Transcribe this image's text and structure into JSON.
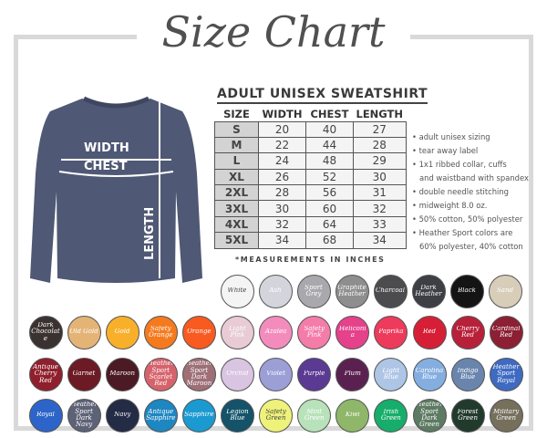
{
  "title": "Size Chart",
  "product": "ADULT UNISEX SWEATSHIRT",
  "shirt_labels": {
    "width": "WIDTH",
    "chest": "CHEST",
    "length": "LENGTH"
  },
  "table": {
    "headers": [
      "SIZE",
      "WIDTH",
      "CHEST",
      "LENGTH"
    ],
    "rows": [
      [
        "S",
        "20",
        "40",
        "27"
      ],
      [
        "M",
        "22",
        "44",
        "28"
      ],
      [
        "L",
        "24",
        "48",
        "29"
      ],
      [
        "XL",
        "26",
        "52",
        "30"
      ],
      [
        "2XL",
        "28",
        "56",
        "31"
      ],
      [
        "3XL",
        "30",
        "60",
        "32"
      ],
      [
        "4XL",
        "32",
        "64",
        "33"
      ],
      [
        "5XL",
        "34",
        "68",
        "34"
      ]
    ]
  },
  "note": "*MEASUREMENTS IN INCHES",
  "features": [
    "• adult unisex sizing",
    "• tear away label",
    "• 1x1 ribbed collar, cuffs",
    "and waistband with spandex",
    "• double needle stitching",
    "• midweight 8.0 oz.",
    "• 50% cotton, 50% polyester",
    "• Heather Sport colors are",
    "60% polyester, 40% cotton"
  ],
  "colors": [
    [
      [
        "White",
        "#f4f4f4",
        1
      ],
      [
        "Ash",
        "#d4d5dc",
        0
      ],
      [
        "Sport Grey",
        "#a9a9ad",
        0
      ],
      [
        "Graphite Heather",
        "#8e8e8e",
        0
      ],
      [
        "Charcoal",
        "#4c4c4e",
        0
      ],
      [
        "Dark Heather",
        "#3e3f44",
        0
      ],
      [
        "Black",
        "#141414",
        0
      ],
      [
        "Sand",
        "#d8cdb9",
        0
      ]
    ],
    [
      [
        "Dark Chocolate",
        "#3a3230",
        0
      ],
      [
        "Old Gold",
        "#e4b477",
        0
      ],
      [
        "Gold",
        "#f8b02a",
        0
      ],
      [
        "Safety Orange",
        "#f57a1e",
        0
      ],
      [
        "Orange",
        "#f85a20",
        0
      ],
      [
        "Light Pink",
        "#e8cbd4",
        0
      ],
      [
        "Azalea",
        "#f38cbd",
        0
      ],
      [
        "Safety Pink",
        "#f47ca8",
        0
      ],
      [
        "Heliconia",
        "#e6418b",
        0
      ],
      [
        "Paprika",
        "#ee3a5b",
        0
      ],
      [
        "Red",
        "#d61f36",
        0
      ],
      [
        "Cherry Red",
        "#b8203a",
        0
      ],
      [
        "Cardinal Red",
        "#8c1f33",
        0
      ]
    ],
    [
      [
        "Antique Cherry Red",
        "#8f1f2c",
        0
      ],
      [
        "Garnet",
        "#6c1a24",
        0
      ],
      [
        "Maroon",
        "#4b1a24",
        0
      ],
      [
        "Heather Sport Scarlet Red",
        "#d6636c",
        0
      ],
      [
        "Heather Sport Dark Maroon",
        "#9e6f76",
        0
      ],
      [
        "Orchid",
        "#d9c4e2",
        0
      ],
      [
        "Violet",
        "#9c9fd6",
        0
      ],
      [
        "Purple",
        "#5a3a92",
        0
      ],
      [
        "Plum",
        "#5a2150",
        0
      ],
      [
        "Light Blue",
        "#aec5e6",
        0
      ],
      [
        "Carolina Blue",
        "#85aee0",
        0
      ],
      [
        "Indigo Blue",
        "#6a85ad",
        0
      ],
      [
        "Heather Sport Royal",
        "#3e6ac2",
        0
      ]
    ],
    [
      [
        "Royal",
        "#2d64c9",
        0
      ],
      [
        "Heather Sport Dark Navy",
        "#5e6277",
        0
      ],
      [
        "Navy",
        "#232b45",
        0
      ],
      [
        "Antique Sapphire",
        "#1e86c1",
        0
      ],
      [
        "Sapphire",
        "#1a9ad0",
        0
      ],
      [
        "Legion Blue",
        "#14536a",
        0
      ],
      [
        "Safety Green",
        "#eef27a",
        1
      ],
      [
        "Mint Green",
        "#b8e2ba",
        0
      ],
      [
        "Kiwi",
        "#8fb76a",
        0
      ],
      [
        "Irish Green",
        "#17ad6a",
        0
      ],
      [
        "Heather Sport Dark Green",
        "#5d7a62",
        0
      ],
      [
        "Forest Green",
        "#213a2c",
        0
      ],
      [
        "Military Green",
        "#756f5c",
        0
      ]
    ]
  ]
}
